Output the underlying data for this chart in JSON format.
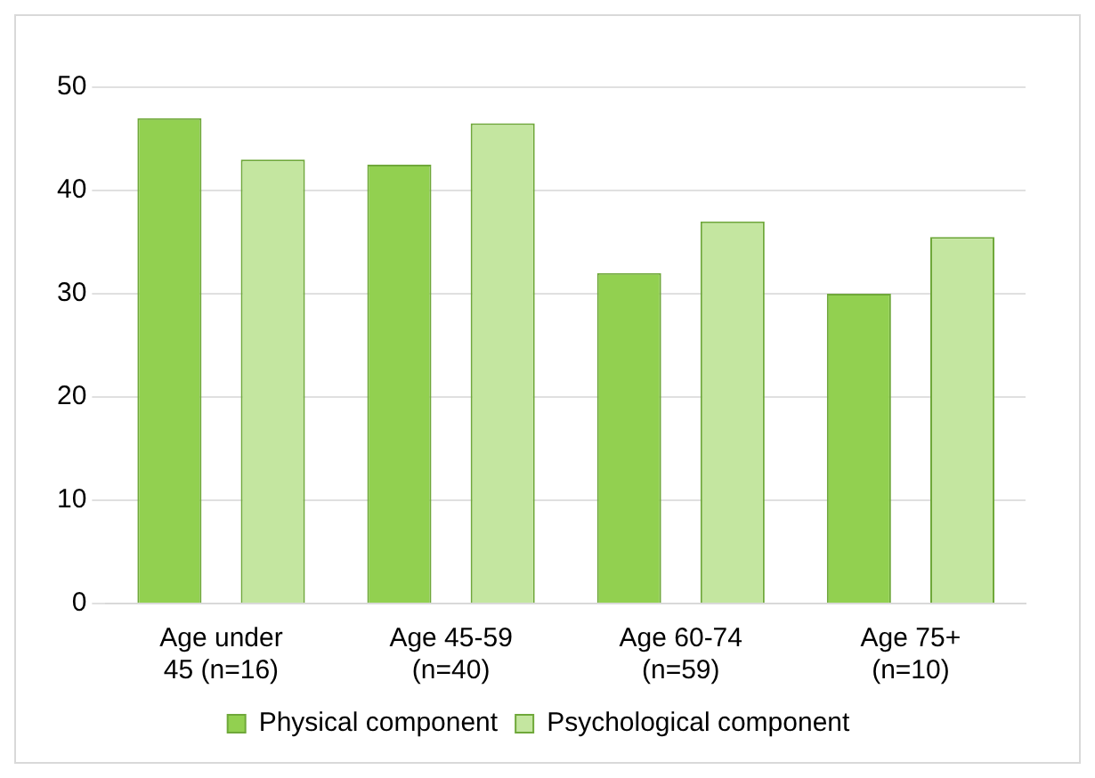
{
  "chart_data": {
    "type": "bar",
    "categories": [
      "Age under 45 (n=16)",
      "Age 45-59 (n=40)",
      "Age 60-74 (n=59)",
      "Age 75+ (n=10)"
    ],
    "series": [
      {
        "name": "Physical component",
        "color": "#92d050",
        "values": [
          47,
          42.5,
          32,
          30
        ]
      },
      {
        "name": "Psychological component",
        "color": "#c4e6a0",
        "values": [
          43,
          46.5,
          37,
          35.5
        ]
      }
    ],
    "ylim": [
      0,
      50
    ],
    "yticks": [
      0,
      10,
      20,
      30,
      40,
      50
    ],
    "grid": "y",
    "legend": "bottom"
  }
}
